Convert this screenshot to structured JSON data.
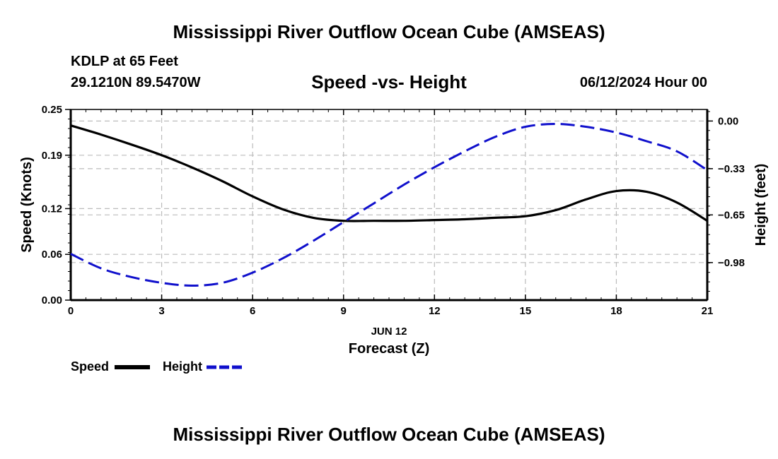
{
  "page": {
    "title_top": "Mississippi River Outflow Ocean Cube (AMSEAS)",
    "title_bottom": "Mississippi River Outflow Ocean Cube (AMSEAS)",
    "station": "KDLP at 65 Feet",
    "coords": "29.1210N  89.5470W",
    "chart_title": "Speed -vs- Height",
    "date": "06/12/2024 Hour 00"
  },
  "chart_data": {
    "type": "line",
    "title": "Speed -vs- Height",
    "xlabel": "Forecast (Z)",
    "xlabel_date": "JUN 12",
    "ylabel": "Speed (Knots)",
    "ylabel_right": "Height (feet)",
    "xlim": [
      0,
      21
    ],
    "ylim": [
      0,
      0.25
    ],
    "ylim_right": [
      -1.24,
      0.08
    ],
    "x_ticks": [
      0,
      3,
      6,
      9,
      12,
      15,
      18,
      21
    ],
    "x_tick_labels": [
      "0",
      "3",
      "6",
      "9",
      "12",
      "15",
      "18",
      "21"
    ],
    "y_ticks": [
      0.0,
      0.06,
      0.12,
      0.19,
      0.25
    ],
    "y_tick_labels": [
      "0.00",
      "0.06",
      "0.12",
      "0.19",
      "0.25"
    ],
    "y_right_ticks": [
      0.0,
      -0.33,
      -0.65,
      -0.98
    ],
    "y_right_tick_labels": [
      "0.00",
      "−0.33",
      "−0.65",
      "−0.98"
    ],
    "grid": true,
    "series": [
      {
        "name": "Speed",
        "axis": "left",
        "color": "#000000",
        "style": "solid",
        "x": [
          0,
          1,
          2,
          3,
          4,
          5,
          6,
          7,
          8,
          9,
          10,
          11,
          12,
          13,
          14,
          15,
          16,
          17,
          18,
          19,
          20,
          21
        ],
        "values": [
          0.229,
          0.217,
          0.204,
          0.19,
          0.174,
          0.156,
          0.136,
          0.119,
          0.108,
          0.104,
          0.104,
          0.104,
          0.105,
          0.106,
          0.108,
          0.11,
          0.118,
          0.132,
          0.143,
          0.142,
          0.128,
          0.104
        ]
      },
      {
        "name": "Height",
        "axis": "right",
        "color": "#1010cc",
        "style": "dashed",
        "x": [
          0,
          1,
          2,
          3,
          4,
          5,
          6,
          7,
          8,
          9,
          10,
          11,
          12,
          13,
          14,
          15,
          16,
          17,
          18,
          19,
          20,
          21
        ],
        "values": [
          -0.92,
          -1.02,
          -1.08,
          -1.12,
          -1.14,
          -1.12,
          -1.05,
          -0.95,
          -0.83,
          -0.7,
          -0.57,
          -0.44,
          -0.32,
          -0.21,
          -0.11,
          -0.04,
          -0.02,
          -0.04,
          -0.08,
          -0.14,
          -0.21,
          -0.34
        ]
      }
    ],
    "legend": [
      {
        "label": "Speed",
        "color": "#000000",
        "style": "solid"
      },
      {
        "label": "Height",
        "color": "#1010cc",
        "style": "dashed"
      }
    ]
  }
}
